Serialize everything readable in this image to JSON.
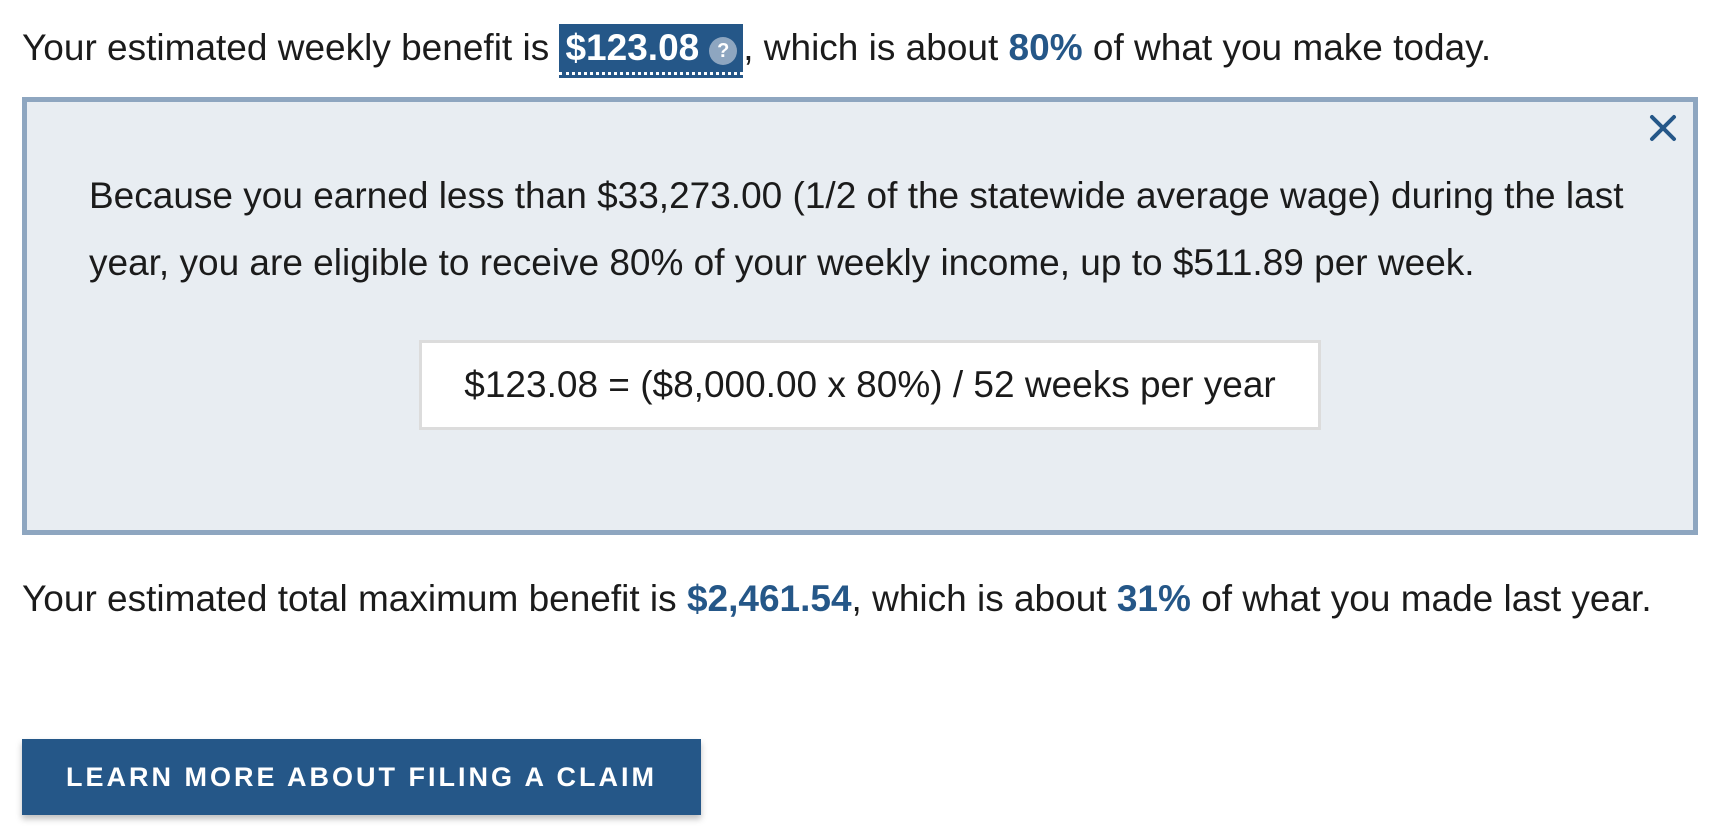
{
  "summary": {
    "prefix": "Your estimated weekly benefit is ",
    "weekly_benefit": "$123.08",
    "help_icon": "question-circle-icon",
    "middle": ", which is about ",
    "percent": "80%",
    "suffix": " of what you make today."
  },
  "explanation": {
    "text": "Because you earned less than $33,273.00 (1/2 of the statewide average wage) during the last year, you are eligible to receive 80% of your weekly income, up to $511.89 per week.",
    "formula": "$123.08 = ($8,000.00 x 80%) / 52 weeks per year",
    "close_icon": "close-icon"
  },
  "total": {
    "prefix": "Your estimated total maximum benefit is ",
    "amount": "$2,461.54",
    "middle": ", which is about ",
    "percent": "31%",
    "suffix": " of what you made last year."
  },
  "cta": {
    "label": "LEARN MORE ABOUT FILING A CLAIM"
  },
  "colors": {
    "accent": "#255788",
    "panel_bg": "#e8edf2",
    "panel_border": "#8ea6c0"
  }
}
